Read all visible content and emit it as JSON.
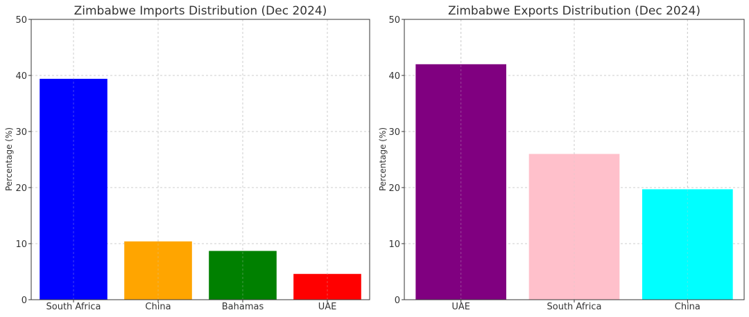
{
  "chart_data": [
    {
      "type": "bar",
      "title": "Zimbabwe Imports Distribution (Dec 2024)",
      "xlabel": "",
      "ylabel": "Percentage (%)",
      "categories": [
        "South Africa",
        "China",
        "Bahamas",
        "UAE"
      ],
      "values": [
        39.4,
        10.4,
        8.7,
        4.6
      ],
      "colors": [
        "#0000ff",
        "#ffa500",
        "#008000",
        "#ff0000"
      ],
      "ylim": [
        0,
        50
      ],
      "yticks": [
        0,
        10,
        20,
        30,
        40,
        50
      ],
      "grid": true
    },
    {
      "type": "bar",
      "title": "Zimbabwe Exports Distribution (Dec 2024)",
      "xlabel": "",
      "ylabel": "Percentage (%)",
      "categories": [
        "UAE",
        "South Africa",
        "China"
      ],
      "values": [
        42.0,
        26.0,
        19.7
      ],
      "colors": [
        "#800080",
        "#ffc0cb",
        "#00ffff"
      ],
      "ylim": [
        0,
        50
      ],
      "yticks": [
        0,
        10,
        20,
        30,
        40,
        50
      ],
      "grid": true
    }
  ]
}
